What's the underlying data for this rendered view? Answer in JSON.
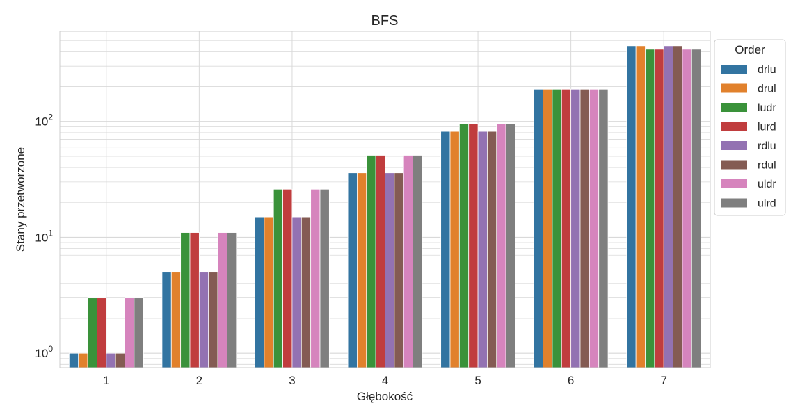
{
  "chart_data": {
    "type": "bar",
    "title": "BFS",
    "xlabel": "Głębokość",
    "ylabel": "Stany przetworzone",
    "yscale": "log",
    "ylim": [
      0.75,
      600
    ],
    "yticks": [
      {
        "value": 1,
        "base": "10",
        "exp": "0"
      },
      {
        "value": 10,
        "base": "10",
        "exp": "1"
      },
      {
        "value": 100,
        "base": "10",
        "exp": "2"
      }
    ],
    "grid": true,
    "legend": {
      "title": "Order",
      "position": "outside-top-right"
    },
    "categories": [
      "1",
      "2",
      "3",
      "4",
      "5",
      "6",
      "7"
    ],
    "series": [
      {
        "name": "drlu",
        "color": "#3274a1",
        "values": [
          1,
          5,
          15,
          36,
          82,
          190,
          450
        ]
      },
      {
        "name": "drul",
        "color": "#e1812c",
        "values": [
          1,
          5,
          15,
          36,
          82,
          190,
          450
        ]
      },
      {
        "name": "ludr",
        "color": "#3a923a",
        "values": [
          3,
          11,
          26,
          51,
          96,
          190,
          420
        ]
      },
      {
        "name": "lurd",
        "color": "#c03d3e",
        "values": [
          3,
          11,
          26,
          51,
          96,
          190,
          420
        ]
      },
      {
        "name": "rdlu",
        "color": "#9372b2",
        "values": [
          1,
          5,
          15,
          36,
          82,
          190,
          450
        ]
      },
      {
        "name": "rdul",
        "color": "#845b53",
        "values": [
          1,
          5,
          15,
          36,
          82,
          190,
          450
        ]
      },
      {
        "name": "uldr",
        "color": "#d684bd",
        "values": [
          3,
          11,
          26,
          51,
          96,
          190,
          420
        ]
      },
      {
        "name": "ulrd",
        "color": "#7f7f7f",
        "values": [
          3,
          11,
          26,
          51,
          96,
          190,
          420
        ]
      }
    ]
  }
}
